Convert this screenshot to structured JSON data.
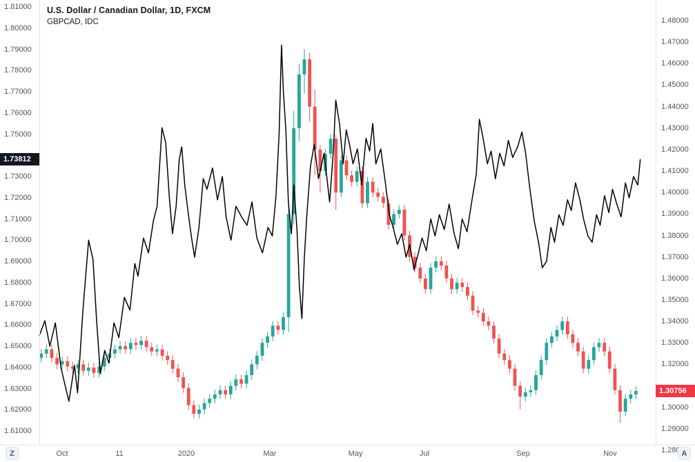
{
  "legend": {
    "title": "U.S. Dollar / Canadian Dollar, 1D, FXCM",
    "subtitle": "GBPCAD, IDC"
  },
  "badges": {
    "left": {
      "text": "1.73812",
      "bg": "#131722",
      "fg": "#ffffff"
    },
    "right": {
      "text": "1.30756",
      "bg": "#f23645",
      "fg": "#ffffff"
    }
  },
  "buttons": {
    "zoom_out": "Z",
    "auto": "A"
  },
  "chart_data": {
    "type": "mixed",
    "title": "U.S. Dollar / Canadian Dollar, 1D, FXCM",
    "overlay": "GBPCAD, IDC",
    "grid": "off",
    "left_axis": {
      "min": 1.61,
      "max": 1.81,
      "ticks": [
        "1.81000",
        "1.80000",
        "1.79000",
        "1.78000",
        "1.77000",
        "1.76000",
        "1.75000",
        "1.73000",
        "1.72000",
        "1.71000",
        "1.70000",
        "1.69000",
        "1.68000",
        "1.67000",
        "1.66000",
        "1.65000",
        "1.64000",
        "1.63000",
        "1.62000",
        "1.61000"
      ]
    },
    "right_axis": {
      "min": 1.28,
      "max": 1.48,
      "ticks": [
        "1.48000",
        "1.47000",
        "1.46000",
        "1.45000",
        "1.44000",
        "1.43000",
        "1.42000",
        "1.41000",
        "1.40000",
        "1.39000",
        "1.38000",
        "1.37000",
        "1.36000",
        "1.35000",
        "1.34000",
        "1.33000",
        "1.32000",
        "1.30000",
        "1.29000",
        "1.28000"
      ]
    },
    "x_axis": {
      "ticks": [
        {
          "label": "Oct",
          "f": 0.037
        },
        {
          "label": "11",
          "f": 0.13
        },
        {
          "label": "2020",
          "f": 0.239
        },
        {
          "label": "Mar",
          "f": 0.374
        },
        {
          "label": "May",
          "f": 0.513
        },
        {
          "label": "Jul",
          "f": 0.625
        },
        {
          "label": "Sep",
          "f": 0.785
        },
        {
          "label": "Nov",
          "f": 0.926
        }
      ]
    },
    "series": [
      {
        "name": "U.S. Dollar / Canadian Dollar (USDCAD)",
        "type": "candlestick",
        "axis": "right",
        "last_price": 1.30756,
        "up_color": "#26a69a",
        "down_color": "#ef5350",
        "x_start": 0.003,
        "x_end": 0.968,
        "first_open": 1.323,
        "default_wick": 0.0022,
        "closes": [
          1.325,
          1.327,
          1.323,
          1.32,
          1.3215,
          1.319,
          1.318,
          1.32,
          1.317,
          1.3185,
          1.316,
          1.319,
          1.323,
          1.325,
          1.327,
          1.3285,
          1.327,
          1.33,
          1.329,
          1.331,
          1.328,
          1.326,
          1.327,
          1.324,
          1.322,
          1.318,
          1.314,
          1.309,
          1.301,
          1.297,
          1.299,
          1.302,
          1.304,
          1.306,
          1.308,
          1.306,
          1.31,
          1.313,
          1.311,
          1.315,
          1.32,
          1.324,
          1.33,
          1.333,
          1.338,
          1.336,
          1.342,
          1.39,
          1.43,
          1.455,
          1.462,
          1.44,
          1.42,
          1.41,
          1.418,
          1.425,
          1.4,
          1.415,
          1.408,
          1.405,
          1.41,
          1.395,
          1.405,
          1.4,
          1.398,
          1.395,
          1.385,
          1.39,
          1.392,
          1.38,
          1.37,
          1.365,
          1.36,
          1.355,
          1.365,
          1.368,
          1.366,
          1.36,
          1.355,
          1.358,
          1.356,
          1.352,
          1.345,
          1.344,
          1.34,
          1.338,
          1.332,
          1.325,
          1.322,
          1.318,
          1.31,
          1.305,
          1.307,
          1.308,
          1.315,
          1.322,
          1.33,
          1.333,
          1.336,
          1.34,
          1.334,
          1.33,
          1.326,
          1.318,
          1.322,
          1.328,
          1.33,
          1.326,
          1.318,
          1.308,
          1.298,
          1.304,
          1.306,
          1.3076
        ],
        "wick_overrides": {
          "29": {
            "l": 1.2948
          },
          "47": {
            "h": 1.396,
            "l": 1.335
          },
          "48": {
            "h": 1.438,
            "l": 1.385
          },
          "49": {
            "h": 1.46,
            "l": 1.424
          },
          "50": {
            "h": 1.4668,
            "l": 1.446
          },
          "51": {
            "h": 1.465,
            "l": 1.433
          },
          "52": {
            "h": 1.448,
            "l": 1.408
          },
          "53": {
            "l": 1.4
          },
          "56": {
            "l": 1.392
          },
          "91": {
            "l": 1.299
          },
          "110": {
            "l": 1.2928
          }
        }
      },
      {
        "name": "GBPCAD (IDC) overlay line",
        "type": "line",
        "axis": "left",
        "last_price": 1.73812,
        "color": "#000000",
        "points": [
          [
            0,
            1.655
          ],
          [
            0.009,
            1.662
          ],
          [
            0.017,
            1.65
          ],
          [
            0.026,
            1.661
          ],
          [
            0.035,
            1.64
          ],
          [
            0.043,
            1.63
          ],
          [
            0.048,
            1.624
          ],
          [
            0.057,
            1.641
          ],
          [
            0.062,
            1.628
          ],
          [
            0.071,
            1.668
          ],
          [
            0.08,
            1.7
          ],
          [
            0.087,
            1.691
          ],
          [
            0.093,
            1.662
          ],
          [
            0.099,
            1.637
          ],
          [
            0.106,
            1.648
          ],
          [
            0.113,
            1.642
          ],
          [
            0.121,
            1.661
          ],
          [
            0.129,
            1.654
          ],
          [
            0.138,
            1.673
          ],
          [
            0.147,
            1.667
          ],
          [
            0.155,
            1.689
          ],
          [
            0.16,
            1.683
          ],
          [
            0.169,
            1.701
          ],
          [
            0.177,
            1.694
          ],
          [
            0.185,
            1.709
          ],
          [
            0.191,
            1.716
          ],
          [
            0.199,
            1.753
          ],
          [
            0.205,
            1.746
          ],
          [
            0.211,
            1.72
          ],
          [
            0.216,
            1.703
          ],
          [
            0.222,
            1.716
          ],
          [
            0.227,
            1.738
          ],
          [
            0.231,
            1.744
          ],
          [
            0.236,
            1.726
          ],
          [
            0.241,
            1.714
          ],
          [
            0.247,
            1.701
          ],
          [
            0.252,
            1.692
          ],
          [
            0.259,
            1.706
          ],
          [
            0.266,
            1.729
          ],
          [
            0.272,
            1.724
          ],
          [
            0.281,
            1.734
          ],
          [
            0.289,
            1.719
          ],
          [
            0.297,
            1.73
          ],
          [
            0.303,
            1.711
          ],
          [
            0.311,
            1.7
          ],
          [
            0.319,
            1.716
          ],
          [
            0.328,
            1.711
          ],
          [
            0.337,
            1.707
          ],
          [
            0.345,
            1.718
          ],
          [
            0.353,
            1.701
          ],
          [
            0.362,
            1.694
          ],
          [
            0.371,
            1.706
          ],
          [
            0.378,
            1.702
          ],
          [
            0.384,
            1.721
          ],
          [
            0.389,
            1.75
          ],
          [
            0.393,
            1.792
          ],
          [
            0.396,
            1.77
          ],
          [
            0.4,
            1.752
          ],
          [
            0.404,
            1.718
          ],
          [
            0.409,
            1.703
          ],
          [
            0.413,
            1.726
          ],
          [
            0.418,
            1.705
          ],
          [
            0.422,
            1.678
          ],
          [
            0.426,
            1.663
          ],
          [
            0.43,
            1.692
          ],
          [
            0.434,
            1.712
          ],
          [
            0.44,
            1.735
          ],
          [
            0.446,
            1.745
          ],
          [
            0.453,
            1.729
          ],
          [
            0.462,
            1.741
          ],
          [
            0.471,
            1.718
          ],
          [
            0.477,
            1.742
          ],
          [
            0.481,
            1.766
          ],
          [
            0.487,
            1.755
          ],
          [
            0.493,
            1.736
          ],
          [
            0.498,
            1.752
          ],
          [
            0.504,
            1.744
          ],
          [
            0.509,
            1.736
          ],
          [
            0.516,
            1.743
          ],
          [
            0.523,
            1.726
          ],
          [
            0.53,
            1.748
          ],
          [
            0.536,
            1.742
          ],
          [
            0.541,
            1.755
          ],
          [
            0.546,
            1.736
          ],
          [
            0.554,
            1.743
          ],
          [
            0.561,
            1.728
          ],
          [
            0.568,
            1.712
          ],
          [
            0.574,
            1.706
          ],
          [
            0.581,
            1.698
          ],
          [
            0.588,
            1.703
          ],
          [
            0.595,
            1.692
          ],
          [
            0.601,
            1.698
          ],
          [
            0.608,
            1.686
          ],
          [
            0.615,
            1.694
          ],
          [
            0.621,
            1.701
          ],
          [
            0.628,
            1.695
          ],
          [
            0.635,
            1.71
          ],
          [
            0.642,
            1.702
          ],
          [
            0.649,
            1.712
          ],
          [
            0.657,
            1.705
          ],
          [
            0.665,
            1.717
          ],
          [
            0.673,
            1.703
          ],
          [
            0.68,
            1.696
          ],
          [
            0.686,
            1.71
          ],
          [
            0.694,
            1.704
          ],
          [
            0.702,
            1.719
          ],
          [
            0.709,
            1.731
          ],
          [
            0.714,
            1.757
          ],
          [
            0.72,
            1.748
          ],
          [
            0.727,
            1.736
          ],
          [
            0.733,
            1.742
          ],
          [
            0.74,
            1.729
          ],
          [
            0.747,
            1.741
          ],
          [
            0.754,
            1.735
          ],
          [
            0.761,
            1.747
          ],
          [
            0.768,
            1.739
          ],
          [
            0.776,
            1.744
          ],
          [
            0.783,
            1.751
          ],
          [
            0.789,
            1.741
          ],
          [
            0.796,
            1.724
          ],
          [
            0.803,
            1.709
          ],
          [
            0.81,
            1.699
          ],
          [
            0.816,
            1.687
          ],
          [
            0.823,
            1.69
          ],
          [
            0.83,
            1.706
          ],
          [
            0.836,
            1.699
          ],
          [
            0.843,
            1.712
          ],
          [
            0.85,
            1.707
          ],
          [
            0.857,
            1.719
          ],
          [
            0.863,
            1.714
          ],
          [
            0.87,
            1.727
          ],
          [
            0.877,
            1.719
          ],
          [
            0.883,
            1.71
          ],
          [
            0.89,
            1.702
          ],
          [
            0.897,
            1.699
          ],
          [
            0.904,
            1.712
          ],
          [
            0.91,
            1.707
          ],
          [
            0.917,
            1.721
          ],
          [
            0.924,
            1.713
          ],
          [
            0.93,
            1.724
          ],
          [
            0.937,
            1.717
          ],
          [
            0.944,
            1.711
          ],
          [
            0.951,
            1.727
          ],
          [
            0.957,
            1.72
          ],
          [
            0.964,
            1.73
          ],
          [
            0.971,
            1.726
          ],
          [
            0.975,
            1.738
          ]
        ]
      }
    ]
  }
}
